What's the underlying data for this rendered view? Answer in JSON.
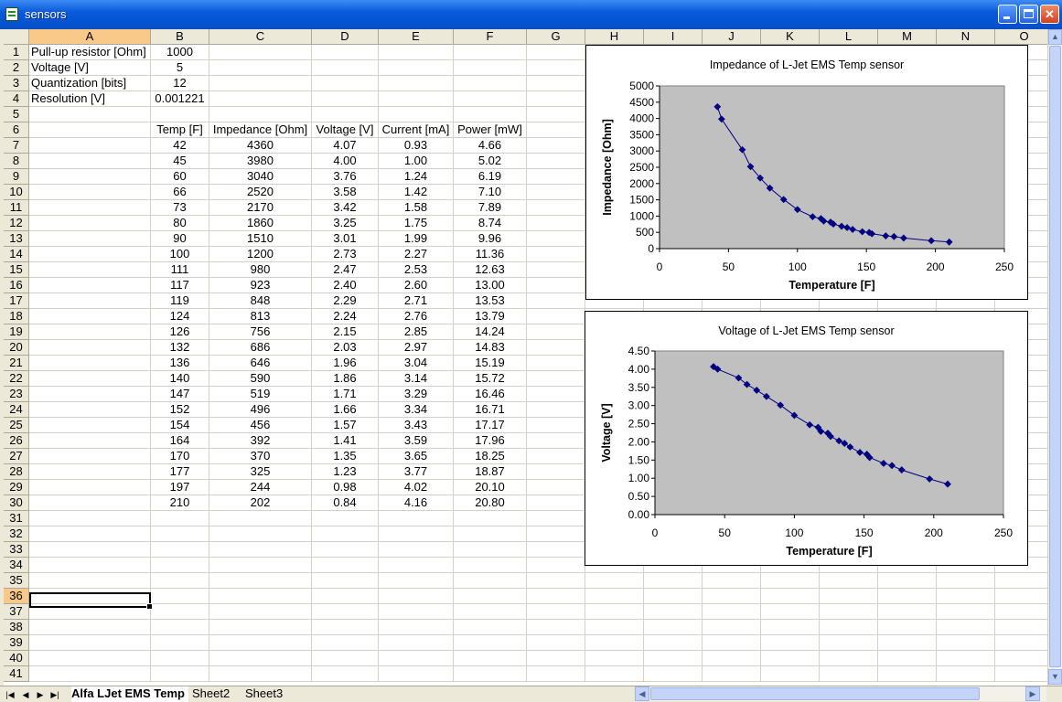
{
  "window": {
    "title": "sensors"
  },
  "columns": [
    "A",
    "B",
    "C",
    "D",
    "E",
    "F",
    "G",
    "H",
    "I",
    "J",
    "K",
    "L",
    "M",
    "N",
    "O"
  ],
  "selected_column": "A",
  "selected_row": 36,
  "params": [
    {
      "label": "Pull-up resistor [Ohm]",
      "value": "1000"
    },
    {
      "label": "Voltage [V]",
      "value": "5"
    },
    {
      "label": "Quantization [bits]",
      "value": "12"
    },
    {
      "label": "Resolution [V]",
      "value": "0.001221"
    }
  ],
  "table": {
    "headers": [
      "Temp [F]",
      "Impedance [Ohm]",
      "Voltage [V]",
      "Current [mA]",
      "Power [mW]"
    ],
    "rows": [
      [
        "42",
        "4360",
        "4.07",
        "0.93",
        "4.66"
      ],
      [
        "45",
        "3980",
        "4.00",
        "1.00",
        "5.02"
      ],
      [
        "60",
        "3040",
        "3.76",
        "1.24",
        "6.19"
      ],
      [
        "66",
        "2520",
        "3.58",
        "1.42",
        "7.10"
      ],
      [
        "73",
        "2170",
        "3.42",
        "1.58",
        "7.89"
      ],
      [
        "80",
        "1860",
        "3.25",
        "1.75",
        "8.74"
      ],
      [
        "90",
        "1510",
        "3.01",
        "1.99",
        "9.96"
      ],
      [
        "100",
        "1200",
        "2.73",
        "2.27",
        "11.36"
      ],
      [
        "111",
        "980",
        "2.47",
        "2.53",
        "12.63"
      ],
      [
        "117",
        "923",
        "2.40",
        "2.60",
        "13.00"
      ],
      [
        "119",
        "848",
        "2.29",
        "2.71",
        "13.53"
      ],
      [
        "124",
        "813",
        "2.24",
        "2.76",
        "13.79"
      ],
      [
        "126",
        "756",
        "2.15",
        "2.85",
        "14.24"
      ],
      [
        "132",
        "686",
        "2.03",
        "2.97",
        "14.83"
      ],
      [
        "136",
        "646",
        "1.96",
        "3.04",
        "15.19"
      ],
      [
        "140",
        "590",
        "1.86",
        "3.14",
        "15.72"
      ],
      [
        "147",
        "519",
        "1.71",
        "3.29",
        "16.46"
      ],
      [
        "152",
        "496",
        "1.66",
        "3.34",
        "16.71"
      ],
      [
        "154",
        "456",
        "1.57",
        "3.43",
        "17.17"
      ],
      [
        "164",
        "392",
        "1.41",
        "3.59",
        "17.96"
      ],
      [
        "170",
        "370",
        "1.35",
        "3.65",
        "18.25"
      ],
      [
        "177",
        "325",
        "1.23",
        "3.77",
        "18.87"
      ],
      [
        "197",
        "244",
        "0.98",
        "4.02",
        "20.10"
      ],
      [
        "210",
        "202",
        "0.84",
        "4.16",
        "20.80"
      ]
    ]
  },
  "sheets": {
    "tabs": [
      "Alfa LJet EMS Temp",
      "Sheet2",
      "Sheet3"
    ],
    "active": "Alfa LJet EMS Temp"
  },
  "chart_data": [
    {
      "type": "scatter",
      "title": "Impedance of L-Jet EMS Temp sensor",
      "xlabel": "Temperature [F]",
      "ylabel": "Impedance [Ohm]",
      "xlim": [
        0,
        250
      ],
      "ylim": [
        0,
        5000
      ],
      "xticks": [
        "0",
        "50",
        "100",
        "150",
        "200",
        "250"
      ],
      "yticks": [
        "0",
        "500",
        "1000",
        "1500",
        "2000",
        "2500",
        "3000",
        "3500",
        "4000",
        "4500",
        "5000"
      ],
      "x": [
        42,
        45,
        60,
        66,
        73,
        80,
        90,
        100,
        111,
        117,
        119,
        124,
        126,
        132,
        136,
        140,
        147,
        152,
        154,
        164,
        170,
        177,
        197,
        210
      ],
      "y": [
        4360,
        3980,
        3040,
        2520,
        2170,
        1860,
        1510,
        1200,
        980,
        923,
        848,
        813,
        756,
        686,
        646,
        590,
        519,
        496,
        456,
        392,
        370,
        325,
        244,
        202
      ],
      "grid": false,
      "plot_bg": "#c0c0c0",
      "series_color": "#000080"
    },
    {
      "type": "scatter",
      "title": "Voltage of L-Jet EMS Temp sensor",
      "xlabel": "Temperature [F]",
      "ylabel": "Voltage [V]",
      "xlim": [
        0,
        250
      ],
      "ylim": [
        0,
        4.5
      ],
      "xticks": [
        "0",
        "50",
        "100",
        "150",
        "200",
        "250"
      ],
      "yticks": [
        "0.00",
        "0.50",
        "1.00",
        "1.50",
        "2.00",
        "2.50",
        "3.00",
        "3.50",
        "4.00",
        "4.50"
      ],
      "x": [
        42,
        45,
        60,
        66,
        73,
        80,
        90,
        100,
        111,
        117,
        119,
        124,
        126,
        132,
        136,
        140,
        147,
        152,
        154,
        164,
        170,
        177,
        197,
        210
      ],
      "y": [
        4.07,
        4.0,
        3.76,
        3.58,
        3.42,
        3.25,
        3.01,
        2.73,
        2.47,
        2.4,
        2.29,
        2.24,
        2.15,
        2.03,
        1.96,
        1.86,
        1.71,
        1.66,
        1.57,
        1.41,
        1.35,
        1.23,
        0.98,
        0.84
      ],
      "grid": false,
      "plot_bg": "#c0c0c0",
      "series_color": "#000080"
    }
  ]
}
